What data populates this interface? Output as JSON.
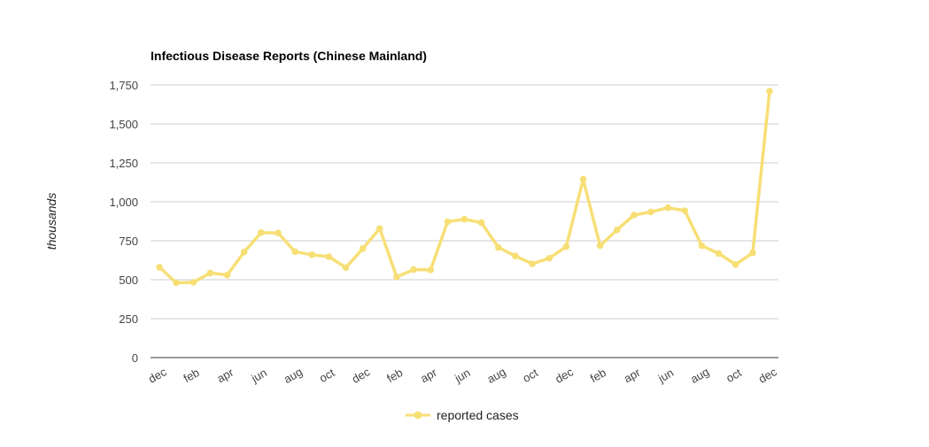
{
  "chart_data": {
    "type": "line",
    "title": "Infectious Disease Reports (Chinese Mainland)",
    "ylabel": "thousands",
    "xlabel": "",
    "ylim": [
      0,
      1750
    ],
    "yticks": [
      0,
      250,
      500,
      750,
      1000,
      1250,
      1500,
      1750
    ],
    "ytick_labels": [
      "0",
      "250",
      "500",
      "750",
      "1,000",
      "1,250",
      "1,500",
      "1,750"
    ],
    "grid": true,
    "legend_position": "bottom",
    "x": [
      "dec",
      "jan",
      "feb",
      "mar",
      "apr",
      "may",
      "jun",
      "jul",
      "aug",
      "sep",
      "oct",
      "nov",
      "dec",
      "jan",
      "feb",
      "mar",
      "apr",
      "may",
      "jun",
      "jul",
      "aug",
      "sep",
      "oct",
      "nov",
      "dec",
      "jan",
      "feb",
      "mar",
      "apr",
      "may",
      "jun",
      "jul",
      "aug",
      "sep",
      "oct",
      "nov",
      "dec"
    ],
    "x_tick_labels": [
      "dec",
      "",
      "feb",
      "",
      "apr",
      "",
      "jun",
      "",
      "aug",
      "",
      "oct",
      "",
      "dec",
      "",
      "feb",
      "",
      "apr",
      "",
      "jun",
      "",
      "aug",
      "",
      "oct",
      "",
      "dec",
      "",
      "feb",
      "",
      "apr",
      "",
      "jun",
      "",
      "aug",
      "",
      "oct",
      "",
      "dec"
    ],
    "series": [
      {
        "name": "reported cases",
        "color": "#f7df76",
        "values": [
          580,
          480,
          483,
          543,
          530,
          678,
          802,
          800,
          680,
          660,
          648,
          578,
          700,
          828,
          518,
          565,
          563,
          872,
          888,
          866,
          707,
          652,
          602,
          638,
          712,
          1144,
          718,
          820,
          915,
          935,
          962,
          943,
          718,
          668,
          598,
          672,
          1710
        ]
      }
    ]
  }
}
